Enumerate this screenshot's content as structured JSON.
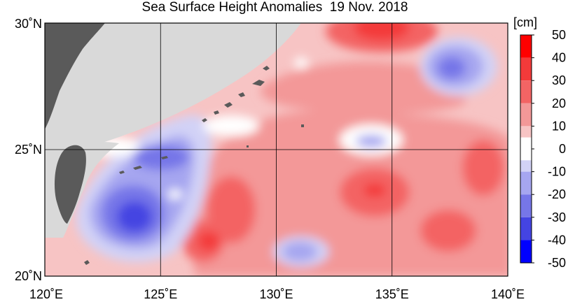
{
  "title": "Sea Surface Height Anomalies  19 Nov. 2018",
  "map": {
    "lon_range": [
      120,
      140
    ],
    "lat_range": [
      20,
      30
    ],
    "lon_ticks": [
      {
        "value": 120,
        "label": "120˚E"
      },
      {
        "value": 125,
        "label": "125˚E"
      },
      {
        "value": 130,
        "label": "130˚E"
      },
      {
        "value": 135,
        "label": "135˚E"
      },
      {
        "value": 140,
        "label": "140˚E"
      }
    ],
    "lat_ticks": [
      {
        "value": 30,
        "label": "30˚N"
      },
      {
        "value": 25,
        "label": "25˚N"
      },
      {
        "value": 20,
        "label": "20˚N"
      }
    ],
    "grid": true,
    "land_color": "#5a5a5a",
    "no_data_color": "#d9d9d9",
    "gridline_color": "#000000"
  },
  "colorbar": {
    "unit": "[cm]",
    "tick_labels": [
      "50",
      "40",
      "30",
      "20",
      "10",
      "0",
      "-10",
      "-20",
      "-30",
      "-40",
      "-50"
    ],
    "classes": [
      {
        "range": [
          40,
          50
        ],
        "color": "#ff0000"
      },
      {
        "range": [
          30,
          40
        ],
        "color": "#f33a3a"
      },
      {
        "range": [
          20,
          30
        ],
        "color": "#f36464"
      },
      {
        "range": [
          10,
          20
        ],
        "color": "#f39898"
      },
      {
        "range": [
          5,
          10
        ],
        "color": "#f7c4c4"
      },
      {
        "range": [
          -5,
          5
        ],
        "color": "#ffffff"
      },
      {
        "range": [
          -10,
          -5
        ],
        "color": "#d2d2f6"
      },
      {
        "range": [
          -20,
          -10
        ],
        "color": "#a6a6f0"
      },
      {
        "range": [
          -30,
          -20
        ],
        "color": "#7676e8"
      },
      {
        "range": [
          -40,
          -30
        ],
        "color": "#4444e2"
      },
      {
        "range": [
          -50,
          -40
        ],
        "color": "#0000ff"
      }
    ]
  }
}
